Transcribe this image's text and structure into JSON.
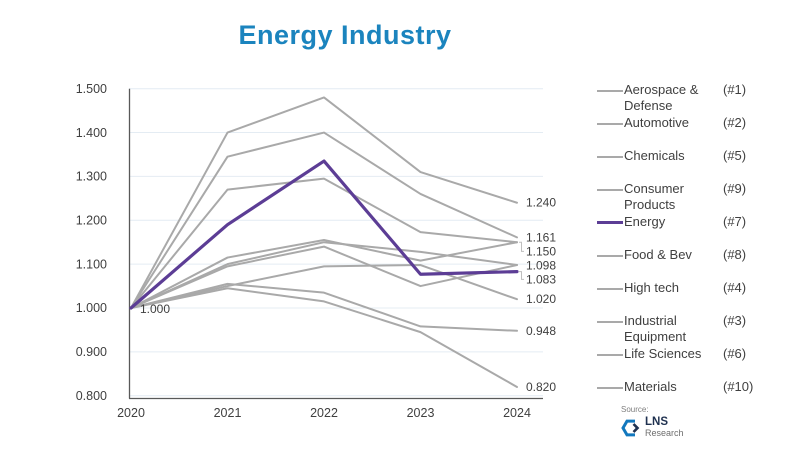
{
  "title": "Energy Industry",
  "colors": {
    "title_blue": "#1B84BE",
    "energy_purple": "#5C3D95",
    "series_gray": "#A9A9A9",
    "gridline": "#E4ECF3",
    "axis": "#595959",
    "text": "#3F3F3F",
    "leader": "#BFBFBF",
    "logo_blue": "#1278BE",
    "logo_navy": "#1F3150"
  },
  "chart_data": {
    "type": "line",
    "x": [
      2020,
      2021,
      2022,
      2023,
      2024
    ],
    "xticks": [
      "2020",
      "2021",
      "2022",
      "2023",
      "2024"
    ],
    "yticks": [
      "1.500",
      "1.400",
      "1.300",
      "1.200",
      "1.100",
      "1.000",
      "0.900",
      "0.800"
    ],
    "ylim": [
      0.8,
      1.5
    ],
    "ytick_step": 0.1,
    "grid": true,
    "legend_position": "right",
    "title": "Energy Industry",
    "xlabel": "",
    "ylabel": "",
    "series": [
      {
        "name": "Aerospace & Defense",
        "rank": "(#1)",
        "emphasis": false,
        "values": [
          1.0,
          1.4,
          1.48,
          1.31,
          1.24
        ]
      },
      {
        "name": "Automotive",
        "rank": "(#2)",
        "emphasis": false,
        "values": [
          1.0,
          1.345,
          1.4,
          1.26,
          1.161
        ]
      },
      {
        "name": "Chemicals",
        "rank": "(#5)",
        "emphasis": false,
        "values": [
          1.0,
          1.1,
          1.15,
          1.128,
          1.098
        ]
      },
      {
        "name": "Consumer Products",
        "rank": "(#9)",
        "emphasis": false,
        "values": [
          1.0,
          1.055,
          1.035,
          0.958,
          0.948
        ]
      },
      {
        "name": "Energy",
        "rank": "(#7)",
        "emphasis": true,
        "values": [
          1.0,
          1.19,
          1.335,
          1.077,
          1.083
        ]
      },
      {
        "name": "Food & Bev",
        "rank": "(#8)",
        "emphasis": false,
        "values": [
          1.0,
          1.05,
          1.095,
          1.098,
          1.02
        ]
      },
      {
        "name": "High tech",
        "rank": "(#4)",
        "emphasis": false,
        "values": [
          1.0,
          1.115,
          1.155,
          1.108,
          1.15
        ]
      },
      {
        "name": "Industrial Equipment",
        "rank": "(#3)",
        "emphasis": false,
        "values": [
          1.0,
          1.27,
          1.295,
          1.173,
          1.15
        ]
      },
      {
        "name": "Life Sciences",
        "rank": "(#6)",
        "emphasis": false,
        "values": [
          1.0,
          1.095,
          1.14,
          1.05,
          1.098
        ]
      },
      {
        "name": "Materials",
        "rank": "(#10)",
        "emphasis": false,
        "values": [
          1.0,
          1.045,
          1.015,
          0.945,
          0.82
        ]
      }
    ],
    "start_label": "1.000",
    "end_labels": [
      "1.240",
      "1.161",
      "1.150",
      "1.098",
      "1.083",
      "1.020",
      "0.948",
      "0.820"
    ]
  },
  "source": {
    "label": "Source:",
    "org": "LNS",
    "org_sub": "Research"
  }
}
